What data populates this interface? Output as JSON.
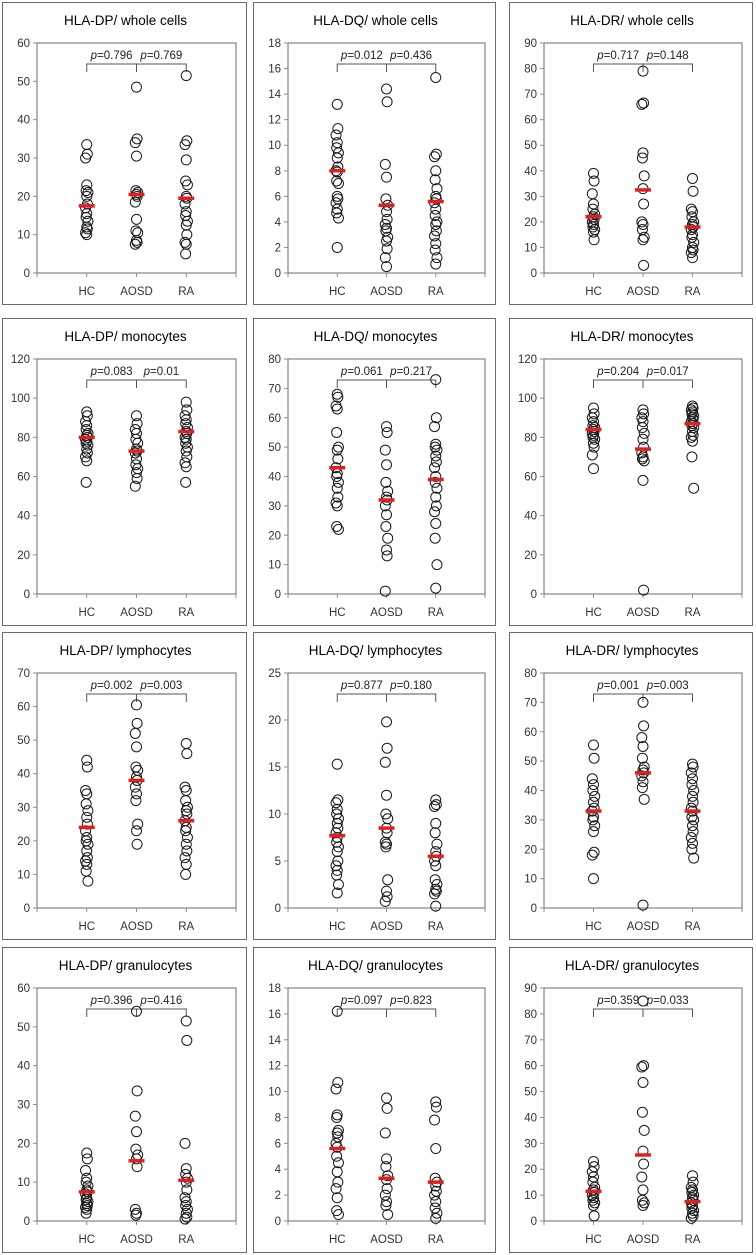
{
  "chart_data": [
    {
      "type": "scatter",
      "title": "HLA-DP/ whole cells",
      "ylim": [
        0,
        60
      ],
      "yticks": [
        0,
        10,
        20,
        30,
        40,
        50,
        60
      ],
      "categories": [
        "HC",
        "AOSD",
        "RA"
      ],
      "groups": {
        "HC": [
          33.5,
          31,
          30,
          23,
          21.5,
          21,
          20,
          18,
          17,
          15.5,
          14.5,
          13.5,
          12,
          11.5,
          10.5,
          10
        ],
        "AOSD": [
          48.5,
          35,
          34,
          30.5,
          21.5,
          21,
          20.5,
          20,
          18.5,
          14,
          11,
          10.5,
          8.5,
          8,
          7.5
        ],
        "RA": [
          51.5,
          34.5,
          33.5,
          29.5,
          24,
          23,
          20,
          19.5,
          18,
          16,
          15,
          13.5,
          12.5,
          10,
          8,
          7.5,
          5
        ]
      },
      "medians": {
        "HC": 17.5,
        "AOSD": 20.5,
        "RA": 19.5
      },
      "comparisons": [
        {
          "label": "p",
          "value": "=0.796"
        },
        {
          "label": "p",
          "value": "=0.769"
        }
      ]
    },
    {
      "type": "scatter",
      "title": "HLA-DQ/ whole cells",
      "ylim": [
        0,
        18
      ],
      "yticks": [
        0,
        2,
        4,
        6,
        8,
        10,
        12,
        14,
        16,
        18
      ],
      "categories": [
        "HC",
        "AOSD",
        "RA"
      ],
      "groups": {
        "HC": [
          13.2,
          11.3,
          10.8,
          10.2,
          9.8,
          9.4,
          9,
          8.3,
          8,
          7.9,
          7.2,
          7,
          6,
          5.8,
          5.5,
          5,
          4.7,
          4.3,
          2
        ],
        "AOSD": [
          14.4,
          13.4,
          8.5,
          7.5,
          5.8,
          5.3,
          4.8,
          4.2,
          3.8,
          3.5,
          3.3,
          2.8,
          2.5,
          1.9,
          1.2,
          0.5
        ],
        "RA": [
          15.3,
          9.3,
          9.1,
          8,
          7.3,
          6.6,
          6,
          5.8,
          5.5,
          5,
          4.5,
          4,
          3.8,
          3.3,
          2.9,
          2.3,
          1.8,
          1.2,
          0.7
        ]
      },
      "medians": {
        "HC": 8,
        "AOSD": 5.3,
        "RA": 5.6
      },
      "comparisons": [
        {
          "label": "p",
          "value": "=0.012"
        },
        {
          "label": "p",
          "value": "=0.436"
        }
      ]
    },
    {
      "type": "scatter",
      "title": "HLA-DR/ whole cells",
      "ylim": [
        0,
        90
      ],
      "yticks": [
        0,
        10,
        20,
        30,
        40,
        50,
        60,
        70,
        80,
        90
      ],
      "categories": [
        "HC",
        "AOSD",
        "RA"
      ],
      "groups": {
        "HC": [
          39,
          36,
          31,
          27,
          25,
          23,
          22,
          21,
          20,
          19,
          18,
          17,
          16,
          13
        ],
        "AOSD": [
          79,
          66.5,
          66,
          47,
          45,
          38,
          33,
          27,
          20,
          19,
          17,
          14,
          13,
          3
        ],
        "RA": [
          37,
          32,
          25,
          24,
          22,
          20,
          19,
          18,
          17,
          15,
          14,
          12,
          10,
          9,
          8,
          6
        ]
      },
      "medians": {
        "HC": 22,
        "AOSD": 32.5,
        "RA": 18
      },
      "comparisons": [
        {
          "label": "p",
          "value": "=0.717"
        },
        {
          "label": "p",
          "value": "=0.148"
        }
      ]
    },
    {
      "type": "scatter",
      "title": "HLA-DP/ monocytes",
      "ylim": [
        0,
        120
      ],
      "yticks": [
        0,
        20,
        40,
        60,
        80,
        100,
        120
      ],
      "categories": [
        "HC",
        "AOSD",
        "RA"
      ],
      "groups": {
        "HC": [
          93,
          91,
          88,
          86,
          84,
          82,
          81,
          80,
          79,
          78,
          77,
          76,
          74,
          72,
          70,
          68,
          57
        ],
        "AOSD": [
          91,
          87,
          84,
          82,
          79,
          77,
          74,
          73,
          72,
          69,
          66,
          64,
          62,
          59,
          55
        ],
        "RA": [
          98,
          94,
          91,
          89,
          87,
          85,
          83,
          82,
          80,
          79,
          77,
          75,
          73,
          70,
          67,
          65,
          57
        ]
      },
      "medians": {
        "HC": 80,
        "AOSD": 73,
        "RA": 83
      },
      "comparisons": [
        {
          "label": "p",
          "value": "=0.083"
        },
        {
          "label": "p",
          "value": "=0.01"
        }
      ]
    },
    {
      "type": "scatter",
      "title": "HLA-DQ/ monocytes",
      "ylim": [
        0,
        80
      ],
      "yticks": [
        0,
        10,
        20,
        30,
        40,
        50,
        60,
        70,
        80
      ],
      "categories": [
        "HC",
        "AOSD",
        "RA"
      ],
      "groups": {
        "HC": [
          68,
          67,
          64,
          63,
          55,
          50,
          49,
          46,
          43,
          41,
          40,
          38,
          36,
          33,
          31,
          30,
          23,
          22
        ],
        "AOSD": [
          57,
          55,
          49,
          44,
          38,
          35,
          33,
          32,
          30,
          27,
          23,
          19,
          15,
          13,
          1
        ],
        "RA": [
          73,
          60,
          57,
          51,
          50,
          49,
          47,
          45,
          43,
          40,
          38,
          36,
          33,
          30,
          28,
          24,
          19,
          10,
          2
        ]
      },
      "medians": {
        "HC": 43,
        "AOSD": 32,
        "RA": 39
      },
      "comparisons": [
        {
          "label": "p",
          "value": "=0.061"
        },
        {
          "label": "p",
          "value": "=0.217"
        }
      ]
    },
    {
      "type": "scatter",
      "title": "HLA-DR/ monocytes",
      "ylim": [
        0,
        120
      ],
      "yticks": [
        0,
        20,
        40,
        60,
        80,
        100,
        120
      ],
      "categories": [
        "HC",
        "AOSD",
        "RA"
      ],
      "groups": {
        "HC": [
          95,
          92,
          90,
          88,
          86,
          85,
          84,
          83,
          82,
          81,
          80,
          79,
          77,
          75,
          71,
          64
        ],
        "AOSD": [
          94,
          92,
          90,
          88,
          85,
          82,
          79,
          75,
          72,
          70,
          69,
          68,
          58,
          2
        ],
        "RA": [
          96,
          95,
          94,
          93,
          92,
          91,
          90,
          89,
          88,
          87,
          86,
          85,
          83,
          81,
          80,
          78,
          70,
          54
        ]
      },
      "medians": {
        "HC": 84,
        "AOSD": 74,
        "RA": 87
      },
      "comparisons": [
        {
          "label": "p",
          "value": "=0.204"
        },
        {
          "label": "p",
          "value": "=0.017"
        }
      ]
    },
    {
      "type": "scatter",
      "title": "HLA-DP/ lymphocytes",
      "ylim": [
        0,
        70
      ],
      "yticks": [
        0,
        10,
        20,
        30,
        40,
        50,
        60,
        70
      ],
      "categories": [
        "HC",
        "AOSD",
        "RA"
      ],
      "groups": {
        "HC": [
          44,
          42,
          35,
          34,
          31,
          29,
          27,
          25,
          23,
          21,
          20,
          19,
          17,
          15,
          14,
          13,
          11,
          8
        ],
        "AOSD": [
          60.5,
          55,
          52,
          48,
          42,
          41,
          39,
          38,
          36,
          34,
          32,
          25,
          23,
          19
        ],
        "RA": [
          49,
          46,
          36,
          35,
          32,
          30,
          29,
          28,
          26,
          24,
          23,
          21,
          19,
          17,
          15,
          13,
          10
        ]
      },
      "medians": {
        "HC": 24,
        "AOSD": 38,
        "RA": 26
      },
      "comparisons": [
        {
          "label": "p",
          "value": "=0.002"
        },
        {
          "label": "p",
          "value": "=0.003"
        }
      ]
    },
    {
      "type": "scatter",
      "title": "HLA-DQ/ lymphocytes",
      "ylim": [
        0,
        25
      ],
      "yticks": [
        0,
        5,
        10,
        15,
        20,
        25
      ],
      "categories": [
        "HC",
        "AOSD",
        "RA"
      ],
      "groups": {
        "HC": [
          15.3,
          11.5,
          11.2,
          10.5,
          10,
          9.5,
          9,
          8.5,
          8,
          7.5,
          7,
          6.5,
          6,
          5,
          4.5,
          4,
          3.5,
          2.5,
          1.6
        ],
        "AOSD": [
          19.8,
          17,
          15.5,
          12,
          10,
          9.5,
          8.5,
          8,
          7,
          6.8,
          6.5,
          3,
          1.8,
          1.2,
          0.7
        ],
        "RA": [
          11.5,
          11,
          10.8,
          9,
          8,
          6.8,
          6,
          5.5,
          5,
          4.5,
          3,
          2.5,
          2,
          1.8,
          1.5,
          0.2
        ]
      },
      "medians": {
        "HC": 7.7,
        "AOSD": 8.5,
        "RA": 5.5
      },
      "comparisons": [
        {
          "label": "p",
          "value": "=0.877"
        },
        {
          "label": "p",
          "value": "=0.180"
        }
      ]
    },
    {
      "type": "scatter",
      "title": "HLA-DR/ lymphocytes",
      "ylim": [
        0,
        80
      ],
      "yticks": [
        0,
        10,
        20,
        30,
        40,
        50,
        60,
        70,
        80
      ],
      "categories": [
        "HC",
        "AOSD",
        "RA"
      ],
      "groups": {
        "HC": [
          55.5,
          51,
          44,
          42,
          40,
          38,
          36,
          34,
          33,
          31,
          30,
          28,
          26,
          19,
          18,
          10
        ],
        "AOSD": [
          70,
          62,
          58,
          55,
          51,
          48,
          47,
          46,
          45,
          43,
          41,
          37,
          1
        ],
        "RA": [
          49,
          48,
          46,
          44,
          42,
          40,
          38,
          36,
          34,
          33,
          31,
          30,
          28,
          26,
          24,
          22,
          20,
          17
        ]
      },
      "medians": {
        "HC": 33,
        "AOSD": 46,
        "RA": 33
      },
      "comparisons": [
        {
          "label": "p",
          "value": "=0.001"
        },
        {
          "label": "p",
          "value": "=0.003"
        }
      ]
    },
    {
      "type": "scatter",
      "title": "HLA-DP/ granulocytes",
      "ylim": [
        0,
        60
      ],
      "yticks": [
        0,
        10,
        20,
        30,
        40,
        50,
        60
      ],
      "categories": [
        "HC",
        "AOSD",
        "RA"
      ],
      "groups": {
        "HC": [
          17.5,
          16,
          13,
          11,
          10,
          9,
          8,
          7.5,
          7,
          6,
          5.5,
          5,
          4.5,
          4,
          3.5,
          3,
          2
        ],
        "AOSD": [
          54,
          33.5,
          27,
          23,
          18.5,
          17,
          16,
          14,
          3,
          2,
          1.5
        ],
        "RA": [
          51.5,
          46.5,
          20,
          13.5,
          12,
          11,
          10,
          8,
          6,
          5,
          4,
          3,
          2,
          1,
          0.5
        ]
      },
      "medians": {
        "HC": 7.5,
        "AOSD": 15.5,
        "RA": 10.5
      },
      "comparisons": [
        {
          "label": "p",
          "value": "=0.396"
        },
        {
          "label": "p",
          "value": "=0.416"
        }
      ]
    },
    {
      "type": "scatter",
      "title": "HLA-DQ/ granulocytes",
      "ylim": [
        0,
        18
      ],
      "yticks": [
        0,
        2,
        4,
        6,
        8,
        10,
        12,
        14,
        16,
        18
      ],
      "categories": [
        "HC",
        "AOSD",
        "RA"
      ],
      "groups": {
        "HC": [
          16.2,
          10.7,
          10.2,
          8.2,
          8,
          7,
          6.8,
          6.5,
          6,
          5.7,
          5,
          4.5,
          3.8,
          3,
          2.5,
          1.8,
          0.8,
          0.5
        ],
        "AOSD": [
          9.5,
          8.7,
          6.8,
          4.8,
          4.2,
          3.5,
          3.2,
          2.5,
          2,
          1.5,
          1.2,
          0.5
        ],
        "RA": [
          9.2,
          8.8,
          7.8,
          5.6,
          3.3,
          3,
          2.7,
          2.3,
          2,
          1.5,
          1,
          0.6,
          0.2
        ]
      },
      "medians": {
        "HC": 5.6,
        "AOSD": 3.3,
        "RA": 3
      },
      "comparisons": [
        {
          "label": "p",
          "value": "=0.097"
        },
        {
          "label": "p",
          "value": "=0.823"
        }
      ]
    },
    {
      "type": "scatter",
      "title": "HLA-DR/ granulocytes",
      "ylim": [
        0,
        90
      ],
      "yticks": [
        0,
        10,
        20,
        30,
        40,
        50,
        60,
        70,
        80,
        90
      ],
      "categories": [
        "HC",
        "AOSD",
        "RA"
      ],
      "groups": {
        "HC": [
          23,
          21,
          19,
          17,
          15,
          13,
          12,
          11,
          10,
          9,
          8,
          7,
          6,
          2
        ],
        "AOSD": [
          85,
          60,
          59.5,
          53.5,
          42,
          35,
          27,
          22,
          17,
          12,
          8,
          7,
          6
        ],
        "RA": [
          17.5,
          15,
          13,
          12,
          11,
          10,
          9,
          8,
          7,
          6,
          5,
          4,
          3,
          2,
          1
        ]
      },
      "medians": {
        "HC": 11.5,
        "AOSD": 25.5,
        "RA": 7.5
      },
      "comparisons": [
        {
          "label": "p",
          "value": "=0.359"
        },
        {
          "label": "p",
          "value": "=0.033"
        }
      ]
    }
  ],
  "colors": {
    "median": "#e02020",
    "marker_stroke": "#1a1a1a",
    "frame": "#6b6b6b"
  }
}
